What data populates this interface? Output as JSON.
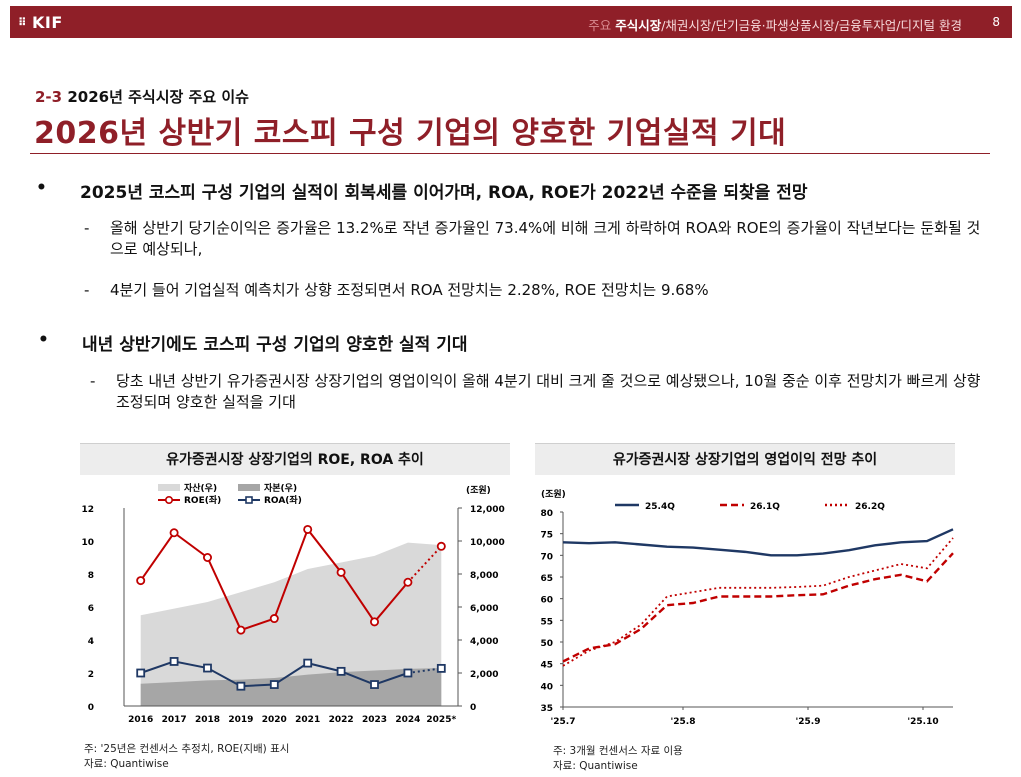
{
  "header": {
    "logo": "KIF",
    "nav_faded": "주요",
    "nav_active": "주식시장",
    "nav_rest": "/채권시장/단기금융·파생상품시장/금융투자업/디지털 환경",
    "page": "8"
  },
  "section": {
    "num": "2-3",
    "label": "2026년 주식시장 주요 이슈"
  },
  "title": "2026년 상반기 코스피 구성 기업의 양호한 기업실적 기대",
  "bullets": [
    {
      "text": "2025년 코스피 구성 기업의 실적이 회복세를 이어가며, ROA, ROE가 2022년 수준을 되찾을 전망",
      "subs": [
        "올해 상반기 당기순이익은 증가율은 13.2%로 작년 증가율인 73.4%에 비해 크게 하락하여 ROA와 ROE의 증가율이 작년보다는 둔화될 것으로 예상되나,",
        "4분기 들어 기업실적 예측치가 상향 조정되면서 ROA 전망치는 2.28%, ROE 전망치는 9.68%"
      ]
    },
    {
      "text": "내년 상반기에도 코스피 구성 기업의 양호한 실적 기대",
      "subs": [
        "당초 내년 상반기 유가증권시장 상장기업의 영업이익이 올해 4분기 대비 크게 줄 것으로 예상됐으나, 10월 중순 이후 전망치가 빠르게 상향 조정되며 양호한 실적을 기대"
      ]
    }
  ],
  "chart_data": [
    {
      "type": "line",
      "title": "유가증권시장 상장기업의 ROE, ROA 추이",
      "categories": [
        "2016",
        "2017",
        "2018",
        "2019",
        "2020",
        "2021",
        "2022",
        "2023",
        "2024",
        "2025*"
      ],
      "left_axis": {
        "ylim": [
          0,
          12
        ],
        "ticks": [
          "0",
          "2",
          "4",
          "6",
          "8",
          "10",
          "12"
        ]
      },
      "right_axis": {
        "unit": "(조원)",
        "ylim": [
          0,
          12000
        ],
        "ticks": [
          "0",
          "2,000",
          "4,000",
          "6,000",
          "8,000",
          "10,000",
          "12,000"
        ]
      },
      "series": [
        {
          "name": "자산(우)",
          "kind": "area",
          "axis": "right",
          "color": "#d9d9d9",
          "values": [
            5500,
            5900,
            6300,
            6900,
            7500,
            8300,
            8700,
            9100,
            9900,
            9750
          ]
        },
        {
          "name": "자본(우)",
          "kind": "area",
          "axis": "right",
          "color": "#a6a6a6",
          "values": [
            1350,
            1450,
            1550,
            1600,
            1700,
            1900,
            2050,
            2150,
            2250,
            2300
          ]
        },
        {
          "name": "ROE(좌)",
          "kind": "line",
          "axis": "left",
          "color": "#c00000",
          "values": [
            7.6,
            10.5,
            9.0,
            4.6,
            5.3,
            10.7,
            8.1,
            5.1,
            7.5,
            9.68
          ]
        },
        {
          "name": "ROA(좌)",
          "kind": "line",
          "axis": "left",
          "color": "#1f3864",
          "values": [
            2.0,
            2.7,
            2.3,
            1.2,
            1.3,
            2.6,
            2.1,
            1.3,
            2.0,
            2.28
          ]
        }
      ],
      "note": "주: '25년은 컨센서스 추정치, ROE(지배) 표시",
      "source": "자료: Quantiwise"
    },
    {
      "type": "line",
      "title": "유가증권시장 상장기업의 영업이익 전망 추이",
      "unit": "(조원)",
      "ylim": [
        35,
        80
      ],
      "y_ticks": [
        "35",
        "40",
        "45",
        "50",
        "55",
        "60",
        "65",
        "70",
        "75",
        "80"
      ],
      "x_ticks": [
        "'25.7",
        "'25.8",
        "'25.9",
        "'25.10"
      ],
      "series": [
        {
          "name": "25.4Q",
          "style": "solid",
          "color": "#1f3864",
          "values": [
            73,
            72.8,
            73,
            72.5,
            72,
            71.8,
            71.3,
            70.8,
            70,
            70,
            70.4,
            71.2,
            72.3,
            73,
            73.3,
            76
          ]
        },
        {
          "name": "26.1Q",
          "style": "dashed",
          "color": "#c00000",
          "values": [
            45.5,
            48.5,
            49.5,
            53,
            58.5,
            59,
            60.5,
            60.5,
            60.5,
            60.8,
            61,
            63,
            64.5,
            65.5,
            64,
            70.5
          ]
        },
        {
          "name": "26.2Q",
          "style": "dotted",
          "color": "#c00000",
          "values": [
            44.5,
            48,
            50,
            54,
            60.5,
            61.5,
            62.5,
            62.5,
            62.5,
            62.7,
            63,
            65,
            66.5,
            68,
            67,
            74
          ]
        }
      ],
      "note": "주: 3개월 컨센서스 자료 이용",
      "source": "자료: Quantiwise"
    }
  ]
}
